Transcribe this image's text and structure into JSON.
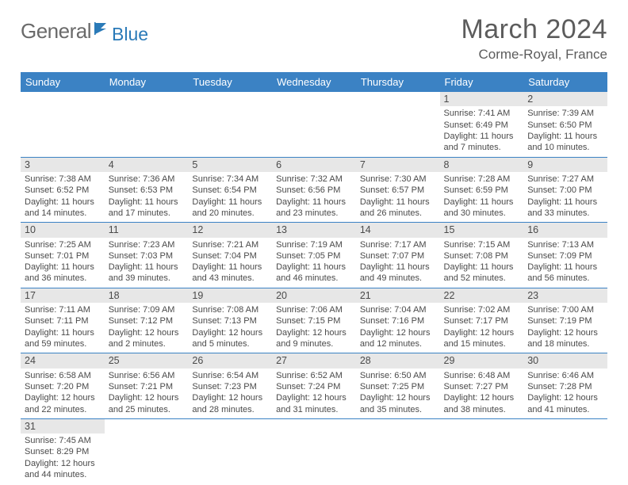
{
  "logo": {
    "word1": "General",
    "word2": "Blue"
  },
  "title": "March 2024",
  "location": "Corme-Royal, France",
  "colors": {
    "header_bg": "#3b82c4",
    "header_text": "#ffffff",
    "daynum_bg": "#e7e7e7",
    "text": "#4a4a4a",
    "logo_gray": "#6a6a6a",
    "logo_blue": "#2a7ab8",
    "rule": "#3b82c4"
  },
  "weekdays": [
    "Sunday",
    "Monday",
    "Tuesday",
    "Wednesday",
    "Thursday",
    "Friday",
    "Saturday"
  ],
  "weeks": [
    [
      null,
      null,
      null,
      null,
      null,
      {
        "n": "1",
        "sr": "Sunrise: 7:41 AM",
        "ss": "Sunset: 6:49 PM",
        "d1": "Daylight: 11 hours",
        "d2": "and 7 minutes."
      },
      {
        "n": "2",
        "sr": "Sunrise: 7:39 AM",
        "ss": "Sunset: 6:50 PM",
        "d1": "Daylight: 11 hours",
        "d2": "and 10 minutes."
      }
    ],
    [
      {
        "n": "3",
        "sr": "Sunrise: 7:38 AM",
        "ss": "Sunset: 6:52 PM",
        "d1": "Daylight: 11 hours",
        "d2": "and 14 minutes."
      },
      {
        "n": "4",
        "sr": "Sunrise: 7:36 AM",
        "ss": "Sunset: 6:53 PM",
        "d1": "Daylight: 11 hours",
        "d2": "and 17 minutes."
      },
      {
        "n": "5",
        "sr": "Sunrise: 7:34 AM",
        "ss": "Sunset: 6:54 PM",
        "d1": "Daylight: 11 hours",
        "d2": "and 20 minutes."
      },
      {
        "n": "6",
        "sr": "Sunrise: 7:32 AM",
        "ss": "Sunset: 6:56 PM",
        "d1": "Daylight: 11 hours",
        "d2": "and 23 minutes."
      },
      {
        "n": "7",
        "sr": "Sunrise: 7:30 AM",
        "ss": "Sunset: 6:57 PM",
        "d1": "Daylight: 11 hours",
        "d2": "and 26 minutes."
      },
      {
        "n": "8",
        "sr": "Sunrise: 7:28 AM",
        "ss": "Sunset: 6:59 PM",
        "d1": "Daylight: 11 hours",
        "d2": "and 30 minutes."
      },
      {
        "n": "9",
        "sr": "Sunrise: 7:27 AM",
        "ss": "Sunset: 7:00 PM",
        "d1": "Daylight: 11 hours",
        "d2": "and 33 minutes."
      }
    ],
    [
      {
        "n": "10",
        "sr": "Sunrise: 7:25 AM",
        "ss": "Sunset: 7:01 PM",
        "d1": "Daylight: 11 hours",
        "d2": "and 36 minutes."
      },
      {
        "n": "11",
        "sr": "Sunrise: 7:23 AM",
        "ss": "Sunset: 7:03 PM",
        "d1": "Daylight: 11 hours",
        "d2": "and 39 minutes."
      },
      {
        "n": "12",
        "sr": "Sunrise: 7:21 AM",
        "ss": "Sunset: 7:04 PM",
        "d1": "Daylight: 11 hours",
        "d2": "and 43 minutes."
      },
      {
        "n": "13",
        "sr": "Sunrise: 7:19 AM",
        "ss": "Sunset: 7:05 PM",
        "d1": "Daylight: 11 hours",
        "d2": "and 46 minutes."
      },
      {
        "n": "14",
        "sr": "Sunrise: 7:17 AM",
        "ss": "Sunset: 7:07 PM",
        "d1": "Daylight: 11 hours",
        "d2": "and 49 minutes."
      },
      {
        "n": "15",
        "sr": "Sunrise: 7:15 AM",
        "ss": "Sunset: 7:08 PM",
        "d1": "Daylight: 11 hours",
        "d2": "and 52 minutes."
      },
      {
        "n": "16",
        "sr": "Sunrise: 7:13 AM",
        "ss": "Sunset: 7:09 PM",
        "d1": "Daylight: 11 hours",
        "d2": "and 56 minutes."
      }
    ],
    [
      {
        "n": "17",
        "sr": "Sunrise: 7:11 AM",
        "ss": "Sunset: 7:11 PM",
        "d1": "Daylight: 11 hours",
        "d2": "and 59 minutes."
      },
      {
        "n": "18",
        "sr": "Sunrise: 7:09 AM",
        "ss": "Sunset: 7:12 PM",
        "d1": "Daylight: 12 hours",
        "d2": "and 2 minutes."
      },
      {
        "n": "19",
        "sr": "Sunrise: 7:08 AM",
        "ss": "Sunset: 7:13 PM",
        "d1": "Daylight: 12 hours",
        "d2": "and 5 minutes."
      },
      {
        "n": "20",
        "sr": "Sunrise: 7:06 AM",
        "ss": "Sunset: 7:15 PM",
        "d1": "Daylight: 12 hours",
        "d2": "and 9 minutes."
      },
      {
        "n": "21",
        "sr": "Sunrise: 7:04 AM",
        "ss": "Sunset: 7:16 PM",
        "d1": "Daylight: 12 hours",
        "d2": "and 12 minutes."
      },
      {
        "n": "22",
        "sr": "Sunrise: 7:02 AM",
        "ss": "Sunset: 7:17 PM",
        "d1": "Daylight: 12 hours",
        "d2": "and 15 minutes."
      },
      {
        "n": "23",
        "sr": "Sunrise: 7:00 AM",
        "ss": "Sunset: 7:19 PM",
        "d1": "Daylight: 12 hours",
        "d2": "and 18 minutes."
      }
    ],
    [
      {
        "n": "24",
        "sr": "Sunrise: 6:58 AM",
        "ss": "Sunset: 7:20 PM",
        "d1": "Daylight: 12 hours",
        "d2": "and 22 minutes."
      },
      {
        "n": "25",
        "sr": "Sunrise: 6:56 AM",
        "ss": "Sunset: 7:21 PM",
        "d1": "Daylight: 12 hours",
        "d2": "and 25 minutes."
      },
      {
        "n": "26",
        "sr": "Sunrise: 6:54 AM",
        "ss": "Sunset: 7:23 PM",
        "d1": "Daylight: 12 hours",
        "d2": "and 28 minutes."
      },
      {
        "n": "27",
        "sr": "Sunrise: 6:52 AM",
        "ss": "Sunset: 7:24 PM",
        "d1": "Daylight: 12 hours",
        "d2": "and 31 minutes."
      },
      {
        "n": "28",
        "sr": "Sunrise: 6:50 AM",
        "ss": "Sunset: 7:25 PM",
        "d1": "Daylight: 12 hours",
        "d2": "and 35 minutes."
      },
      {
        "n": "29",
        "sr": "Sunrise: 6:48 AM",
        "ss": "Sunset: 7:27 PM",
        "d1": "Daylight: 12 hours",
        "d2": "and 38 minutes."
      },
      {
        "n": "30",
        "sr": "Sunrise: 6:46 AM",
        "ss": "Sunset: 7:28 PM",
        "d1": "Daylight: 12 hours",
        "d2": "and 41 minutes."
      }
    ],
    [
      {
        "n": "31",
        "sr": "Sunrise: 7:45 AM",
        "ss": "Sunset: 8:29 PM",
        "d1": "Daylight: 12 hours",
        "d2": "and 44 minutes."
      },
      null,
      null,
      null,
      null,
      null,
      null
    ]
  ]
}
